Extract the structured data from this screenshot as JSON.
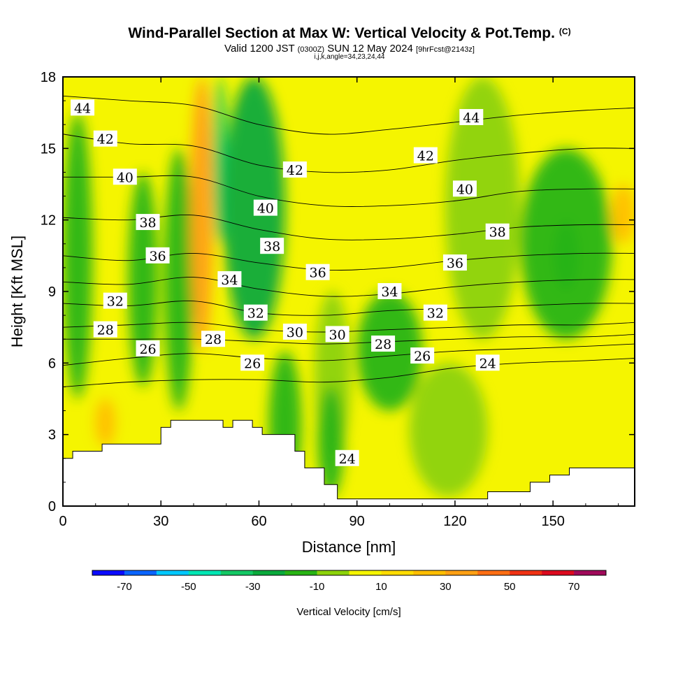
{
  "title": "Wind-Parallel Section at Max W: Vertical Velocity & Pot.Temp.",
  "copyright_mark": "(C)",
  "subtitle_main_a": "Valid 1200 JST",
  "subtitle_small_a": "(0300Z)",
  "subtitle_main_b": "SUN 12 May 2024",
  "subtitle_small_b": "[9hrFcst@2143z]",
  "subtitle_line3": "i,j,k,angle=34,23,24,44",
  "chart_data": {
    "type": "heatmap",
    "title": "Wind-Parallel Section at Max W: Vertical Velocity & Pot.Temp.",
    "xlabel": "Distance [nm]",
    "ylabel": "Height [Kft MSL]",
    "xlim": [
      0,
      175
    ],
    "ylim": [
      0,
      18
    ],
    "x_ticks": [
      "0",
      "30",
      "60",
      "90",
      "120",
      "150"
    ],
    "y_ticks": [
      "0",
      "3",
      "6",
      "9",
      "12",
      "15",
      "18"
    ],
    "colorbar": {
      "label": "Vertical Velocity [cm/s]",
      "tick_labels": [
        "-70",
        "-50",
        "-30",
        "-10",
        "10",
        "30",
        "50",
        "70"
      ],
      "bins": [
        -80,
        -70,
        -60,
        -50,
        -40,
        -30,
        -20,
        -10,
        0,
        10,
        20,
        30,
        40,
        50,
        60,
        70,
        80
      ],
      "colors": [
        "#0a0aff",
        "#0a64ff",
        "#00c8ff",
        "#00e6b4",
        "#14c864",
        "#0aaa3c",
        "#28b414",
        "#8cd20a",
        "#f5f500",
        "#ffdc00",
        "#ffbe00",
        "#ffa014",
        "#ff6e14",
        "#f03214",
        "#dc0a1e",
        "#a00a5a"
      ]
    },
    "velocity_regions": [
      {
        "x_range": [
          0,
          9
        ],
        "y_range": [
          4.5,
          16.5
        ],
        "value": -15
      },
      {
        "x_range": [
          20,
          29
        ],
        "y_range": [
          5,
          14
        ],
        "value": -12
      },
      {
        "x_range": [
          31,
          40
        ],
        "y_range": [
          4,
          15
        ],
        "value": -18
      },
      {
        "x_range": [
          39,
          46
        ],
        "y_range": [
          6.5,
          18
        ],
        "value": 30
      },
      {
        "x_range": [
          46,
          50
        ],
        "y_range": [
          11,
          18
        ],
        "value": -38
      },
      {
        "x_range": [
          49,
          68
        ],
        "y_range": [
          7,
          18
        ],
        "value": -22
      },
      {
        "x_range": [
          63,
          73
        ],
        "y_range": [
          0.4,
          6.5
        ],
        "value": -12
      },
      {
        "x_range": [
          77,
          88
        ],
        "y_range": [
          2,
          9
        ],
        "value": -10
      },
      {
        "x_range": [
          78,
          86
        ],
        "y_range": [
          0.4,
          5
        ],
        "value": -20
      },
      {
        "x_range": [
          90,
          110
        ],
        "y_range": [
          4,
          9
        ],
        "value": -12
      },
      {
        "x_range": [
          106,
          130
        ],
        "y_range": [
          0.4,
          6
        ],
        "value": -8
      },
      {
        "x_range": [
          117,
          140
        ],
        "y_range": [
          7,
          18
        ],
        "value": -10
      },
      {
        "x_range": [
          140,
          168
        ],
        "y_range": [
          7,
          15
        ],
        "value": -12
      },
      {
        "x_range": [
          150,
          158
        ],
        "y_range": [
          9,
          12
        ],
        "value": -20
      },
      {
        "x_range": [
          168,
          175
        ],
        "y_range": [
          11,
          13.5
        ],
        "value": 25
      },
      {
        "x_range": [
          10,
          16
        ],
        "y_range": [
          2.5,
          4.5
        ],
        "value": 22
      }
    ],
    "terrain_kft": [
      [
        0,
        2.0
      ],
      [
        3,
        2.0
      ],
      [
        3,
        2.3
      ],
      [
        12,
        2.3
      ],
      [
        12,
        2.6
      ],
      [
        30,
        2.6
      ],
      [
        30,
        3.3
      ],
      [
        33,
        3.3
      ],
      [
        33,
        3.6
      ],
      [
        49,
        3.6
      ],
      [
        49,
        3.3
      ],
      [
        52,
        3.3
      ],
      [
        52,
        3.6
      ],
      [
        58,
        3.6
      ],
      [
        58,
        3.3
      ],
      [
        61,
        3.3
      ],
      [
        61,
        3.0
      ],
      [
        71,
        3.0
      ],
      [
        71,
        2.3
      ],
      [
        74,
        2.3
      ],
      [
        74,
        1.6
      ],
      [
        80,
        1.6
      ],
      [
        80,
        0.9
      ],
      [
        84,
        0.9
      ],
      [
        84,
        0.3
      ],
      [
        130,
        0.3
      ],
      [
        130,
        0.6
      ],
      [
        143,
        0.6
      ],
      [
        143,
        1.0
      ],
      [
        149,
        1.0
      ],
      [
        149,
        1.3
      ],
      [
        155,
        1.3
      ],
      [
        155,
        1.6
      ],
      [
        175,
        1.6
      ]
    ],
    "isentropes": [
      {
        "theta": 24,
        "label": "24",
        "pts": [
          [
            0,
            5.0
          ],
          [
            20,
            5.2
          ],
          [
            40,
            5.3
          ],
          [
            60,
            5.3
          ],
          [
            80,
            5.2
          ],
          [
            100,
            5.4
          ],
          [
            120,
            5.8
          ],
          [
            140,
            6.0
          ],
          [
            160,
            6.1
          ],
          [
            175,
            6.2
          ]
        ]
      },
      {
        "theta": 26,
        "label": "26",
        "pts": [
          [
            0,
            5.9
          ],
          [
            20,
            6.2
          ],
          [
            40,
            6.4
          ],
          [
            60,
            6.2
          ],
          [
            80,
            6.1
          ],
          [
            100,
            6.3
          ],
          [
            120,
            6.5
          ],
          [
            140,
            6.6
          ],
          [
            160,
            6.7
          ],
          [
            175,
            6.8
          ]
        ]
      },
      {
        "theta": 28,
        "label": "28",
        "pts": [
          [
            0,
            7.0
          ],
          [
            20,
            7.0
          ],
          [
            40,
            7.0
          ],
          [
            60,
            6.9
          ],
          [
            80,
            6.8
          ],
          [
            100,
            6.9
          ],
          [
            120,
            7.0
          ],
          [
            140,
            7.1
          ],
          [
            160,
            7.1
          ],
          [
            175,
            7.2
          ]
        ]
      },
      {
        "theta": 30,
        "label": "30",
        "pts": [
          [
            0,
            7.5
          ],
          [
            20,
            7.6
          ],
          [
            40,
            7.7
          ],
          [
            60,
            7.4
          ],
          [
            80,
            7.3
          ],
          [
            100,
            7.4
          ],
          [
            120,
            7.5
          ],
          [
            140,
            7.6
          ],
          [
            160,
            7.6
          ],
          [
            175,
            7.7
          ]
        ]
      },
      {
        "theta": 32,
        "label": "32",
        "pts": [
          [
            0,
            8.5
          ],
          [
            20,
            8.4
          ],
          [
            40,
            8.6
          ],
          [
            60,
            8.1
          ],
          [
            80,
            8.0
          ],
          [
            100,
            8.2
          ],
          [
            120,
            8.3
          ],
          [
            140,
            8.4
          ],
          [
            160,
            8.5
          ],
          [
            175,
            8.5
          ]
        ]
      },
      {
        "theta": 34,
        "label": "34",
        "pts": [
          [
            0,
            9.4
          ],
          [
            20,
            9.3
          ],
          [
            40,
            9.6
          ],
          [
            60,
            9.1
          ],
          [
            80,
            8.8
          ],
          [
            100,
            8.9
          ],
          [
            120,
            9.2
          ],
          [
            140,
            9.4
          ],
          [
            160,
            9.5
          ],
          [
            175,
            9.5
          ]
        ]
      },
      {
        "theta": 36,
        "label": "36",
        "pts": [
          [
            0,
            10.5
          ],
          [
            20,
            10.3
          ],
          [
            40,
            10.6
          ],
          [
            60,
            10.2
          ],
          [
            80,
            9.9
          ],
          [
            100,
            10.0
          ],
          [
            120,
            10.3
          ],
          [
            140,
            10.5
          ],
          [
            160,
            10.6
          ],
          [
            175,
            10.6
          ]
        ]
      },
      {
        "theta": 38,
        "label": "38",
        "pts": [
          [
            0,
            12.1
          ],
          [
            20,
            12.0
          ],
          [
            40,
            12.2
          ],
          [
            60,
            11.6
          ],
          [
            80,
            11.2
          ],
          [
            100,
            11.2
          ],
          [
            120,
            11.4
          ],
          [
            140,
            11.7
          ],
          [
            160,
            11.8
          ],
          [
            175,
            11.8
          ]
        ]
      },
      {
        "theta": 40,
        "label": "40",
        "pts": [
          [
            0,
            13.8
          ],
          [
            20,
            13.8
          ],
          [
            40,
            13.8
          ],
          [
            60,
            13.0
          ],
          [
            80,
            12.6
          ],
          [
            100,
            12.6
          ],
          [
            120,
            12.8
          ],
          [
            140,
            13.2
          ],
          [
            160,
            13.3
          ],
          [
            175,
            13.3
          ]
        ]
      },
      {
        "theta": 42,
        "label": "42",
        "pts": [
          [
            0,
            15.6
          ],
          [
            20,
            15.2
          ],
          [
            40,
            15.1
          ],
          [
            60,
            14.3
          ],
          [
            80,
            14.0
          ],
          [
            100,
            14.1
          ],
          [
            120,
            14.5
          ],
          [
            140,
            14.8
          ],
          [
            160,
            15.0
          ],
          [
            175,
            15.0
          ]
        ]
      },
      {
        "theta": 44,
        "label": "44",
        "pts": [
          [
            0,
            17.2
          ],
          [
            20,
            17.0
          ],
          [
            40,
            16.8
          ],
          [
            60,
            16.0
          ],
          [
            80,
            15.6
          ],
          [
            100,
            15.8
          ],
          [
            120,
            16.1
          ],
          [
            140,
            16.4
          ],
          [
            160,
            16.6
          ],
          [
            175,
            16.7
          ]
        ]
      }
    ],
    "isentrope_labels": [
      {
        "text": "44",
        "x": 6,
        "y": 16.7
      },
      {
        "text": "42",
        "x": 13,
        "y": 15.4
      },
      {
        "text": "40",
        "x": 19,
        "y": 13.8
      },
      {
        "text": "38",
        "x": 26,
        "y": 11.9
      },
      {
        "text": "36",
        "x": 29,
        "y": 10.5
      },
      {
        "text": "32",
        "x": 16,
        "y": 8.6
      },
      {
        "text": "28",
        "x": 13,
        "y": 7.4
      },
      {
        "text": "26",
        "x": 26,
        "y": 6.6
      },
      {
        "text": "34",
        "x": 51,
        "y": 9.5
      },
      {
        "text": "28",
        "x": 46,
        "y": 7.0
      },
      {
        "text": "32",
        "x": 59,
        "y": 8.1
      },
      {
        "text": "26",
        "x": 58,
        "y": 6.0
      },
      {
        "text": "40",
        "x": 62,
        "y": 12.5
      },
      {
        "text": "38",
        "x": 64,
        "y": 10.9
      },
      {
        "text": "42",
        "x": 71,
        "y": 14.1
      },
      {
        "text": "36",
        "x": 78,
        "y": 9.8
      },
      {
        "text": "30",
        "x": 71,
        "y": 7.3
      },
      {
        "text": "30",
        "x": 84,
        "y": 7.2
      },
      {
        "text": "24",
        "x": 87,
        "y": 2.0
      },
      {
        "text": "34",
        "x": 100,
        "y": 9.0
      },
      {
        "text": "28",
        "x": 98,
        "y": 6.8
      },
      {
        "text": "26",
        "x": 110,
        "y": 6.3
      },
      {
        "text": "42",
        "x": 111,
        "y": 14.7
      },
      {
        "text": "32",
        "x": 114,
        "y": 8.1
      },
      {
        "text": "36",
        "x": 120,
        "y": 10.2
      },
      {
        "text": "24",
        "x": 130,
        "y": 6.0
      },
      {
        "text": "40",
        "x": 123,
        "y": 13.3
      },
      {
        "text": "44",
        "x": 125,
        "y": 16.3
      },
      {
        "text": "38",
        "x": 133,
        "y": 11.5
      }
    ]
  }
}
